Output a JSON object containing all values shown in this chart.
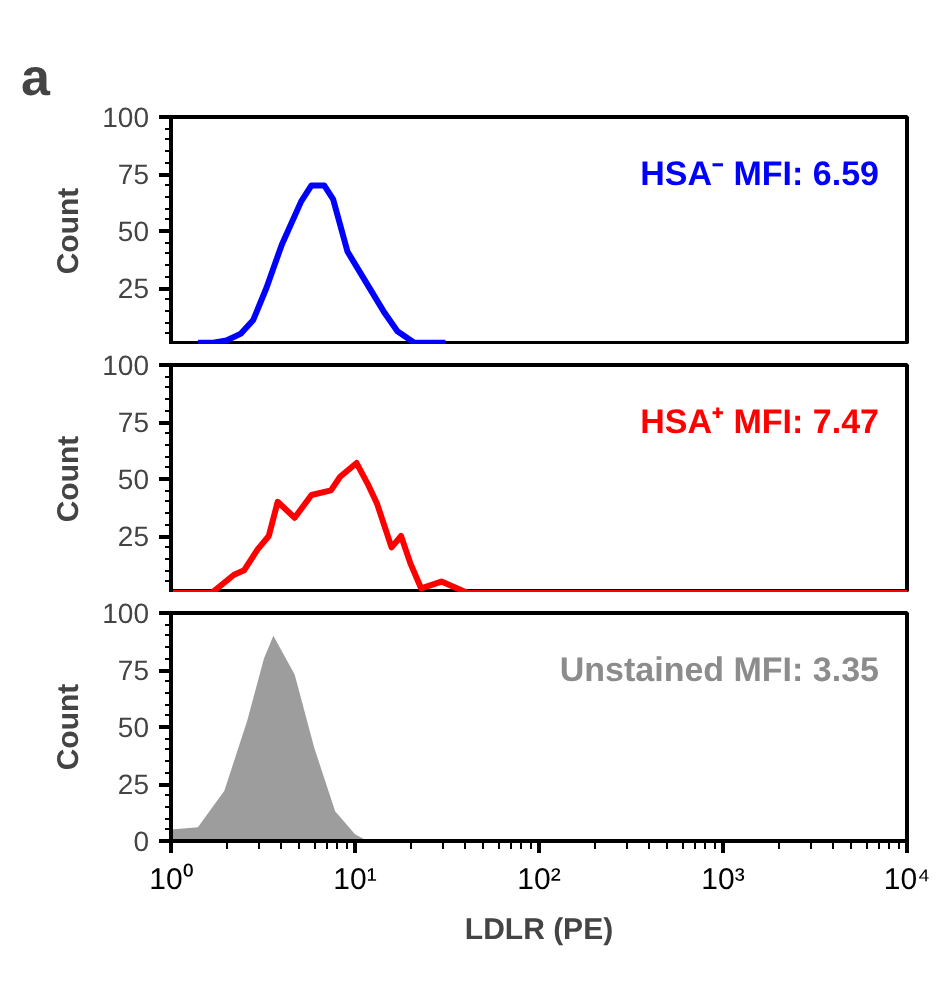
{
  "chart_data": [
    {
      "type": "line",
      "title": "a",
      "ylabel": "Count",
      "log": "x",
      "tick_labels": "y",
      "line_style": "solid",
      "marker": "none",
      "grid": false,
      "x": [
        1.4,
        1.7,
        2.0,
        2.4,
        2.8,
        3.3,
        4.0,
        5.1,
        5.8,
        6.8,
        7.6,
        9.1,
        11,
        14.5,
        17,
        21,
        31
      ],
      "values": [
        1,
        1,
        2,
        5,
        11,
        25,
        44,
        63,
        70,
        70,
        64,
        41,
        30,
        14,
        6,
        1,
        1
      ],
      "color": "#0000ff",
      "xlim": [
        1,
        10000
      ],
      "ylim": [
        0,
        100
      ],
      "yticks": [
        25,
        50,
        75,
        100
      ],
      "annotations": [
        "HSA⁻ MFI: 6.59"
      ]
    },
    {
      "type": "line",
      "ylabel": "Count",
      "log": "x",
      "tick_labels": "y",
      "line_style": "solid",
      "marker": "none",
      "grid": false,
      "x": [
        1,
        1.66,
        2.2,
        2.5,
        2.95,
        3.4,
        3.8,
        4.7,
        5.8,
        7.4,
        8.3,
        10.2,
        11.7,
        13.2,
        15.8,
        17.8,
        20,
        22.9,
        29.5,
        41,
        10000
      ],
      "values": [
        0,
        0,
        8,
        10,
        19,
        25,
        40,
        33,
        43,
        45,
        51,
        57,
        48,
        39,
        20,
        25,
        13,
        2,
        5,
        0,
        0
      ],
      "color": "#ff0000",
      "xlim": [
        1,
        10000
      ],
      "ylim": [
        0,
        100
      ],
      "yticks": [
        25,
        50,
        75,
        100
      ],
      "annotations": [
        "HSA⁺ MFI: 7.47"
      ]
    },
    {
      "type": "area",
      "xlabel": "LDLR (PE)",
      "ylabel": "Count",
      "log": "x",
      "grid": false,
      "x": [
        1,
        1.4,
        1.95,
        2.6,
        3.2,
        3.6,
        4.7,
        6.0,
        7.8,
        10,
        11.7
      ],
      "values": [
        5,
        6,
        22,
        53,
        80,
        90,
        73,
        41,
        13,
        3,
        0
      ],
      "color": "#8c8c8c",
      "xlim": [
        1,
        10000
      ],
      "ylim": [
        0,
        100
      ],
      "yticks": [
        0,
        25,
        50,
        75,
        100
      ],
      "xticks": [
        {
          "value": 1,
          "label": "10⁰"
        },
        {
          "value": 10,
          "label": "10¹"
        },
        {
          "value": 100,
          "label": "10²"
        },
        {
          "value": 1000,
          "label": "10³"
        },
        {
          "value": 10000,
          "label": "10⁴"
        }
      ],
      "annotations": [
        "Unstained MFI: 3.35"
      ]
    }
  ]
}
